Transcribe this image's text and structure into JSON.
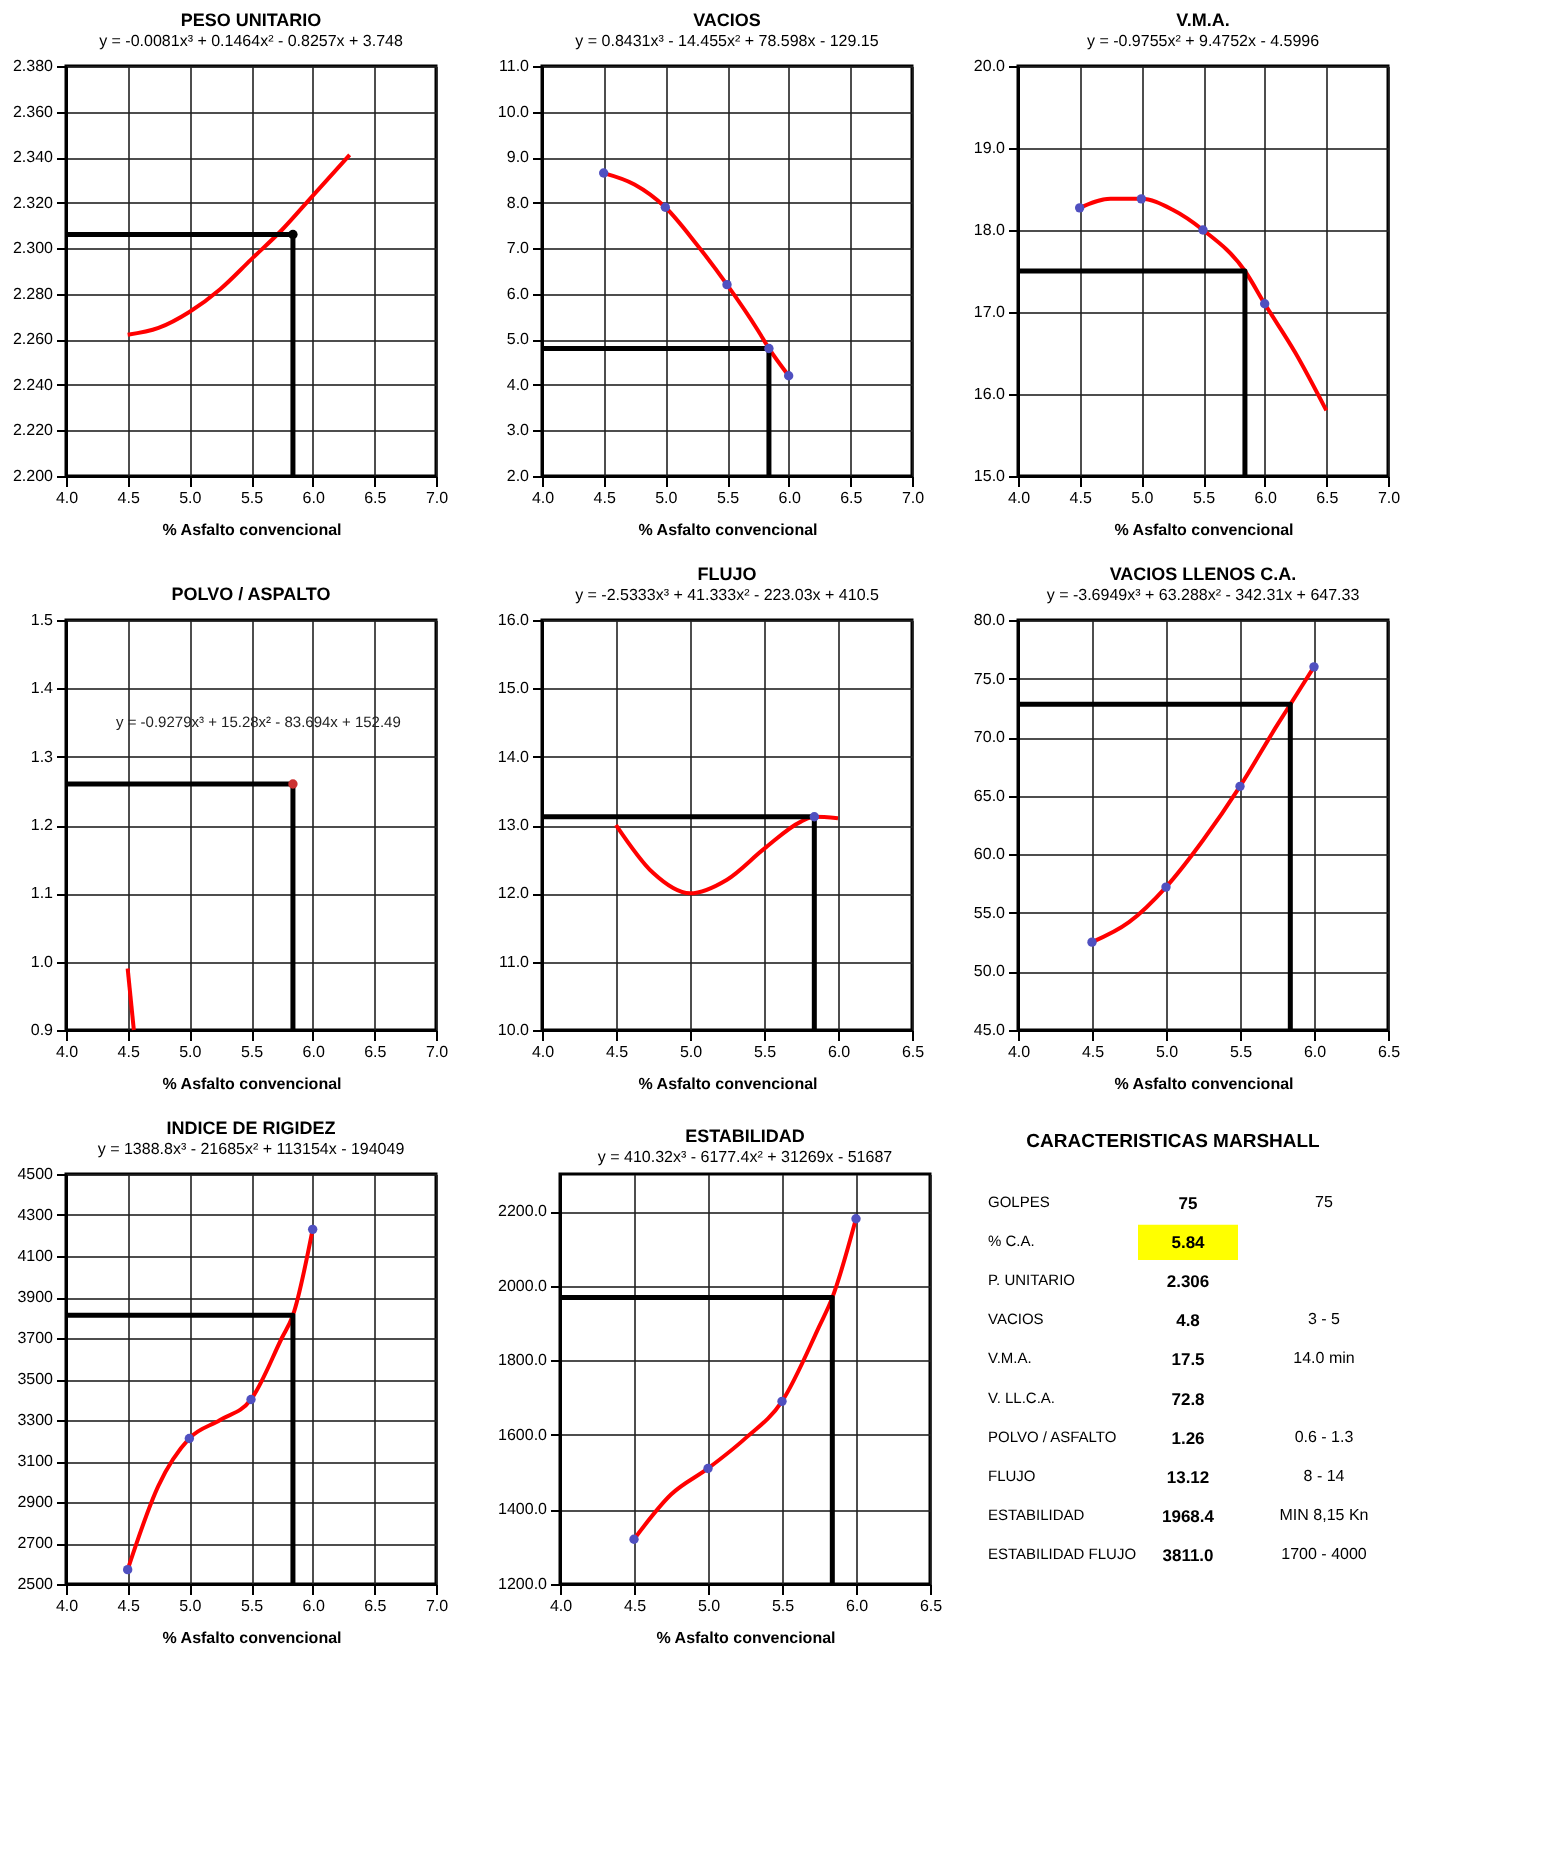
{
  "chart_data": [
    {
      "type": "line",
      "title": "PESO UNITARIO",
      "subtitle": "y = -0.0081x³ + 0.1464x² - 0.8257x + 3.748",
      "xlabel": "% Asfalto convencional",
      "grid": true,
      "xlim": [
        4,
        7
      ],
      "xticks": [
        {
          "value": 4,
          "label": "4.0"
        },
        4.5,
        {
          "value": 5,
          "label": "5.0"
        },
        5.5,
        {
          "value": 6,
          "label": "6.0"
        },
        6.5,
        {
          "value": 7,
          "label": "7.0"
        }
      ],
      "ylim": [
        2.2,
        2.38
      ],
      "yticks": [
        {
          "value": 2.2,
          "label": "2.200"
        },
        {
          "value": 2.22,
          "label": "2.220"
        },
        {
          "value": 2.24,
          "label": "2.240"
        },
        {
          "value": 2.26,
          "label": "2.260"
        },
        {
          "value": 2.28,
          "label": "2.280"
        },
        {
          "value": 2.3,
          "label": "2.300"
        },
        {
          "value": 2.32,
          "label": "2.320"
        },
        {
          "value": 2.34,
          "label": "2.340"
        },
        {
          "value": 2.36,
          "label": "2.360"
        },
        {
          "value": 2.38,
          "label": "2.380"
        }
      ],
      "series": [
        {
          "type": "line",
          "color": "#ff0000",
          "x": [
            4.5,
            4.75,
            5.0,
            5.25,
            5.5,
            5.75,
            6.0,
            6.3
          ],
          "values": [
            2.262,
            2.265,
            2.272,
            2.282,
            2.295,
            2.308,
            2.323,
            2.341
          ]
        },
        {
          "type": "step",
          "color": "#000000",
          "x": [
            4.0,
            5.84,
            5.84
          ],
          "values": [
            2.306,
            2.306,
            2.2
          ]
        },
        {
          "type": "scatter",
          "color": "#000000",
          "marker": "circle",
          "x": [
            5.84
          ],
          "values": [
            2.306
          ]
        }
      ]
    },
    {
      "type": "line",
      "title": "VACIOS",
      "subtitle": "y = 0.8431x³ - 14.455x² + 78.598x - 129.15",
      "xlabel": "% Asfalto convencional",
      "grid": true,
      "xlim": [
        4,
        7
      ],
      "xticks": [
        {
          "value": 4,
          "label": "4.0"
        },
        4.5,
        {
          "value": 5,
          "label": "5.0"
        },
        5.5,
        {
          "value": 6,
          "label": "6.0"
        },
        6.5,
        {
          "value": 7,
          "label": "7.0"
        }
      ],
      "ylim": [
        2,
        11
      ],
      "yticks": [
        {
          "value": 2,
          "label": "2.0"
        },
        {
          "value": 3,
          "label": "3.0"
        },
        {
          "value": 4,
          "label": "4.0"
        },
        {
          "value": 5,
          "label": "5.0"
        },
        {
          "value": 6,
          "label": "6.0"
        },
        {
          "value": 7,
          "label": "7.0"
        },
        {
          "value": 8,
          "label": "8.0"
        },
        {
          "value": 9,
          "label": "9.0"
        },
        {
          "value": 10,
          "label": "10.0"
        },
        {
          "value": 11,
          "label": "11.0"
        }
      ],
      "series": [
        {
          "type": "line",
          "color": "#ff0000",
          "x": [
            4.5,
            4.75,
            5.0,
            5.25,
            5.5,
            5.75,
            5.84,
            6.0
          ],
          "values": [
            8.65,
            8.4,
            7.9,
            7.1,
            6.2,
            5.2,
            4.8,
            4.2
          ]
        },
        {
          "type": "step",
          "color": "#000000",
          "x": [
            4.0,
            5.84,
            5.84
          ],
          "values": [
            4.8,
            4.8,
            2
          ]
        },
        {
          "type": "scatter",
          "color": "#5050c0",
          "marker": "circle",
          "x": [
            4.5,
            5.0,
            5.5,
            5.84,
            6.0
          ],
          "values": [
            8.65,
            7.9,
            6.2,
            4.8,
            4.2
          ]
        }
      ]
    },
    {
      "type": "line",
      "title": "V.M.A.",
      "subtitle": "y = -0.9755x² + 9.4752x - 4.5996",
      "xlabel": "% Asfalto convencional",
      "grid": true,
      "xlim": [
        4,
        7
      ],
      "xticks": [
        {
          "value": 4,
          "label": "4.0"
        },
        4.5,
        {
          "value": 5,
          "label": "5.0"
        },
        5.5,
        {
          "value": 6,
          "label": "6.0"
        },
        6.5,
        {
          "value": 7,
          "label": "7.0"
        }
      ],
      "ylim": [
        15,
        20
      ],
      "yticks": [
        {
          "value": 15,
          "label": "15.0"
        },
        {
          "value": 16,
          "label": "16.0"
        },
        {
          "value": 17,
          "label": "17.0"
        },
        {
          "value": 18,
          "label": "18.0"
        },
        {
          "value": 19,
          "label": "19.0"
        },
        {
          "value": 20,
          "label": "20.0"
        }
      ],
      "series": [
        {
          "type": "line",
          "color": "#ff0000",
          "x": [
            4.5,
            4.75,
            5.0,
            5.25,
            5.5,
            5.84,
            6.0,
            6.25,
            6.5
          ],
          "values": [
            18.27,
            18.38,
            18.38,
            18.25,
            18.0,
            17.5,
            17.1,
            16.5,
            15.8
          ]
        },
        {
          "type": "step",
          "color": "#000000",
          "x": [
            4.0,
            5.84,
            5.84
          ],
          "values": [
            17.5,
            17.5,
            15
          ]
        },
        {
          "type": "scatter",
          "color": "#5050c0",
          "marker": "circle",
          "x": [
            4.5,
            5.0,
            5.5,
            6.0
          ],
          "values": [
            18.27,
            18.38,
            18.0,
            17.1
          ]
        }
      ]
    },
    {
      "type": "line",
      "title": "POLVO / ASPALTO",
      "xlabel": "% Asfalto convencional",
      "grid": true,
      "annotations": [
        "y = -0.9279x³ + 15.28x² - 83.694x + 152.49"
      ],
      "xlim": [
        4,
        7
      ],
      "xticks": [
        {
          "value": 4,
          "label": "4.0"
        },
        4.5,
        {
          "value": 5,
          "label": "5.0"
        },
        5.5,
        {
          "value": 6,
          "label": "6.0"
        },
        6.5,
        {
          "value": 7,
          "label": "7.0"
        }
      ],
      "ylim": [
        0.9,
        1.5
      ],
      "yticks": [
        0.9,
        {
          "value": 1,
          "label": "1.0"
        },
        1.1,
        1.2,
        1.3,
        1.4,
        1.5
      ],
      "series": [
        {
          "type": "line",
          "color": "#ff0000",
          "x": [
            4.5,
            4.55
          ],
          "values": [
            0.99,
            0.9
          ]
        },
        {
          "type": "step",
          "color": "#000000",
          "x": [
            4.0,
            5.84,
            5.84
          ],
          "values": [
            1.26,
            1.26,
            0.9
          ]
        },
        {
          "type": "scatter",
          "color": "#cc3030",
          "marker": "circle",
          "x": [
            5.84
          ],
          "values": [
            1.26
          ]
        }
      ]
    },
    {
      "type": "line",
      "title": "FLUJO",
      "subtitle": "y = -2.5333x³ + 41.333x² - 223.03x + 410.5",
      "xlabel": "% Asfalto convencional",
      "grid": true,
      "xlim": [
        4,
        6.5
      ],
      "xticks": [
        {
          "value": 4,
          "label": "4.0"
        },
        4.5,
        {
          "value": 5,
          "label": "5.0"
        },
        5.5,
        {
          "value": 6,
          "label": "6.0"
        },
        6.5
      ],
      "ylim": [
        10,
        16
      ],
      "yticks": [
        {
          "value": 10,
          "label": "10.0"
        },
        {
          "value": 11,
          "label": "11.0"
        },
        {
          "value": 12,
          "label": "12.0"
        },
        {
          "value": 13,
          "label": "13.0"
        },
        {
          "value": 14,
          "label": "14.0"
        },
        {
          "value": 15,
          "label": "15.0"
        },
        {
          "value": 16,
          "label": "16.0"
        }
      ],
      "series": [
        {
          "type": "line",
          "color": "#ff0000",
          "x": [
            4.5,
            4.75,
            5.0,
            5.25,
            5.5,
            5.75,
            5.84,
            6.0
          ],
          "values": [
            13.0,
            12.3,
            12.0,
            12.2,
            12.65,
            13.05,
            13.12,
            13.1
          ]
        },
        {
          "type": "step",
          "color": "#000000",
          "x": [
            4.0,
            5.84,
            5.84
          ],
          "values": [
            13.12,
            13.12,
            10
          ]
        },
        {
          "type": "scatter",
          "color": "#5050c0",
          "marker": "circle",
          "x": [
            5.84
          ],
          "values": [
            13.12
          ]
        }
      ]
    },
    {
      "type": "line",
      "title": "VACIOS LLENOS C.A.",
      "subtitle": "y = -3.6949x³ + 63.288x² - 342.31x + 647.33",
      "xlabel": "% Asfalto convencional",
      "grid": true,
      "xlim": [
        4,
        6.5
      ],
      "xticks": [
        {
          "value": 4,
          "label": "4.0"
        },
        4.5,
        {
          "value": 5,
          "label": "5.0"
        },
        5.5,
        {
          "value": 6,
          "label": "6.0"
        },
        6.5
      ],
      "ylim": [
        45,
        80
      ],
      "yticks": [
        {
          "value": 45,
          "label": "45.0"
        },
        {
          "value": 50,
          "label": "50.0"
        },
        {
          "value": 55,
          "label": "55.0"
        },
        {
          "value": 60,
          "label": "60.0"
        },
        {
          "value": 65,
          "label": "65.0"
        },
        {
          "value": 70,
          "label": "70.0"
        },
        {
          "value": 75,
          "label": "75.0"
        },
        {
          "value": 80,
          "label": "80.0"
        }
      ],
      "series": [
        {
          "type": "line",
          "color": "#ff0000",
          "x": [
            4.5,
            4.75,
            5.0,
            5.25,
            5.5,
            5.75,
            5.84,
            6.0
          ],
          "values": [
            52.5,
            54.2,
            57.2,
            61.2,
            65.8,
            71.0,
            72.8,
            76.0
          ]
        },
        {
          "type": "step",
          "color": "#000000",
          "x": [
            4.0,
            5.84,
            5.84
          ],
          "values": [
            72.8,
            72.8,
            45
          ]
        },
        {
          "type": "scatter",
          "color": "#5050c0",
          "marker": "circle",
          "x": [
            4.5,
            5.0,
            5.5,
            6.0
          ],
          "values": [
            52.5,
            57.2,
            65.8,
            76.0
          ]
        }
      ]
    },
    {
      "type": "line",
      "title": "INDICE DE RIGIDEZ",
      "subtitle": "y = 1388.8x³ - 21685x² + 113154x - 194049",
      "xlabel": "% Asfalto convencional",
      "grid": true,
      "xlim": [
        4,
        7
      ],
      "xticks": [
        {
          "value": 4,
          "label": "4.0"
        },
        4.5,
        {
          "value": 5,
          "label": "5.0"
        },
        5.5,
        {
          "value": 6,
          "label": "6.0"
        },
        6.5,
        {
          "value": 7,
          "label": "7.0"
        }
      ],
      "ylim": [
        2500,
        4500
      ],
      "yticks": [
        2500,
        2700,
        2900,
        3100,
        3300,
        3500,
        3700,
        3900,
        4100,
        4300,
        4500
      ],
      "series": [
        {
          "type": "line",
          "color": "#ff0000",
          "x": [
            4.5,
            4.75,
            5.0,
            5.25,
            5.5,
            5.75,
            5.84,
            6.0
          ],
          "values": [
            2570,
            2980,
            3210,
            3300,
            3400,
            3700,
            3811,
            4230
          ]
        },
        {
          "type": "step",
          "color": "#000000",
          "x": [
            4.0,
            5.84,
            5.84
          ],
          "values": [
            3811,
            3811,
            2500
          ]
        },
        {
          "type": "scatter",
          "color": "#5050c0",
          "marker": "circle",
          "x": [
            4.5,
            5.0,
            5.5,
            6.0
          ],
          "values": [
            2570,
            3210,
            3400,
            4230
          ]
        }
      ]
    },
    {
      "type": "line",
      "title": "ESTABILIDAD",
      "subtitle": "y = 410.32x³ - 6177.4x² + 31269x - 51687",
      "xlabel": "% Asfalto convencional",
      "grid": true,
      "xlim": [
        4,
        6.5
      ],
      "xticks": [
        {
          "value": 4,
          "label": "4.0"
        },
        4.5,
        {
          "value": 5,
          "label": "5.0"
        },
        5.5,
        {
          "value": 6,
          "label": "6.0"
        },
        6.5
      ],
      "ylim": [
        1200,
        2300
      ],
      "yticks": [
        {
          "value": 1200,
          "label": "1200.0"
        },
        {
          "value": 1400,
          "label": "1400.0"
        },
        {
          "value": 1600,
          "label": "1600.0"
        },
        {
          "value": 1800,
          "label": "1800.0"
        },
        {
          "value": 2000,
          "label": "2000.0"
        },
        {
          "value": 2200,
          "label": "2200.0"
        }
      ],
      "series": [
        {
          "type": "line",
          "color": "#ff0000",
          "x": [
            4.5,
            4.75,
            5.0,
            5.25,
            5.5,
            5.75,
            5.84,
            6.0
          ],
          "values": [
            1320,
            1440,
            1510,
            1590,
            1690,
            1890,
            1968.4,
            2180
          ]
        },
        {
          "type": "step",
          "color": "#000000",
          "x": [
            4.0,
            5.84,
            5.84
          ],
          "values": [
            1968.4,
            1968.4,
            1200
          ]
        },
        {
          "type": "scatter",
          "color": "#5050c0",
          "marker": "circle",
          "x": [
            4.5,
            5.0,
            5.5,
            6.0
          ],
          "values": [
            1320,
            1510,
            1690,
            2180
          ]
        }
      ]
    },
    {
      "type": "other",
      "title": "CARACTERISTICAS MARSHALL",
      "categories": [
        "GOLPES",
        "% C.A.",
        "P. UNITARIO",
        "VACIOS",
        "V.M.A.",
        "V. LL.C.A.",
        "POLVO / ASFALTO",
        "FLUJO",
        "ESTABILIDAD",
        "ESTABILIDAD FLUJO"
      ],
      "value_labels": [
        "75",
        "5.84",
        "2.306",
        "4.8",
        "17.5",
        "72.8",
        "1.26",
        "13.12",
        "1968.4",
        "3811.0"
      ],
      "colors": [
        null,
        "#ffff00",
        null,
        null,
        null,
        null,
        null,
        null,
        null,
        null
      ],
      "annotations": [
        {
          "text": "75",
          "y": "GOLPES"
        },
        {
          "text": "3 - 5",
          "y": "VACIOS"
        },
        {
          "text": "14.0 min",
          "y": "V.M.A."
        },
        {
          "text": "0.6 - 1.3",
          "y": "POLVO / ASFALTO"
        },
        {
          "text": "8 - 14",
          "y": "FLUJO"
        },
        {
          "text": "MIN 8,15 Kn",
          "y": "ESTABILIDAD"
        },
        {
          "text": "1700 - 4000",
          "y": "ESTABILIDAD FLUJO"
        }
      ]
    }
  ]
}
